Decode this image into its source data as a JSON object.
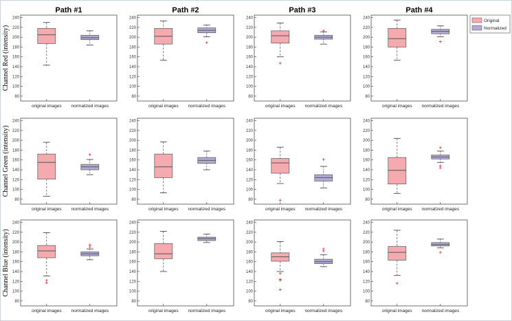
{
  "chart_data": {
    "type": "box",
    "columns": [
      "Path #1",
      "Path #2",
      "Path #3",
      "Path #4"
    ],
    "rows": [
      "Channel Red (intensity)",
      "Channel Green (intensity)",
      "Channel Blue (intensity)"
    ],
    "categories": [
      "original images",
      "normalized images"
    ],
    "legend": [
      {
        "label": "Original",
        "color": "#f5aab0"
      },
      {
        "label": "Normalized",
        "color": "#b3aad6"
      }
    ],
    "ylim": [
      70,
      245
    ],
    "yticks": [
      80,
      100,
      120,
      140,
      160,
      180,
      200,
      220,
      240
    ],
    "colors": {
      "original": "#f5aab0",
      "normalized": "#b3aad6",
      "median": "#555555",
      "outlier": "#e03030"
    },
    "panels": [
      [
        [
          {
            "lo": 143,
            "q1": 187,
            "median": 205,
            "q3": 218,
            "hi": 230,
            "outliers": []
          },
          {
            "lo": 184,
            "q1": 195,
            "median": 199,
            "q3": 204,
            "hi": 213,
            "outliers": []
          }
        ],
        [
          {
            "lo": 153,
            "q1": 186,
            "median": 202,
            "q3": 218,
            "hi": 233,
            "outliers": []
          },
          {
            "lo": 201,
            "q1": 209,
            "median": 214,
            "q3": 219,
            "hi": 225,
            "outliers": [
              189
            ]
          }
        ],
        [
          {
            "lo": 160,
            "q1": 188,
            "median": 203,
            "q3": 213,
            "hi": 229,
            "outliers": [
              147
            ]
          },
          {
            "lo": 186,
            "q1": 196,
            "median": 200,
            "q3": 204,
            "hi": 211,
            "outliers": [
              213
            ]
          }
        ],
        [
          {
            "lo": 153,
            "q1": 180,
            "median": 197,
            "q3": 218,
            "hi": 235,
            "outliers": []
          },
          {
            "lo": 201,
            "q1": 207,
            "median": 212,
            "q3": 216,
            "hi": 223,
            "outliers": [
              191
            ]
          }
        ]
      ],
      [
        [
          {
            "lo": 86,
            "q1": 121,
            "median": 155,
            "q3": 172,
            "hi": 196,
            "outliers": []
          },
          {
            "lo": 130,
            "q1": 140,
            "median": 146,
            "q3": 151,
            "hi": 161,
            "outliers": [
              171
            ]
          }
        ],
        [
          {
            "lo": 93,
            "q1": 124,
            "median": 146,
            "q3": 172,
            "hi": 197,
            "outliers": []
          },
          {
            "lo": 140,
            "q1": 153,
            "median": 159,
            "q3": 165,
            "hi": 178,
            "outliers": []
          }
        ],
        [
          {
            "lo": 112,
            "q1": 133,
            "median": 154,
            "q3": 163,
            "hi": 186,
            "outliers": [
              78
            ]
          },
          {
            "lo": 103,
            "q1": 117,
            "median": 124,
            "q3": 130,
            "hi": 147,
            "outliers": [
              161
            ]
          }
        ],
        [
          {
            "lo": 92,
            "q1": 111,
            "median": 139,
            "q3": 165,
            "hi": 204,
            "outliers": []
          },
          {
            "lo": 155,
            "q1": 162,
            "median": 166,
            "q3": 170,
            "hi": 178,
            "outliers": [
              185,
              148,
              144
            ]
          }
        ]
      ],
      [
        [
          {
            "lo": 131,
            "q1": 168,
            "median": 182,
            "q3": 193,
            "hi": 219,
            "outliers": [
              122,
              117
            ]
          },
          {
            "lo": 164,
            "q1": 172,
            "median": 176,
            "q3": 180,
            "hi": 186,
            "outliers": [
              194,
              190
            ]
          }
        ],
        [
          {
            "lo": 140,
            "q1": 166,
            "median": 176,
            "q3": 197,
            "hi": 222,
            "outliers": []
          },
          {
            "lo": 199,
            "q1": 203,
            "median": 207,
            "q3": 210,
            "hi": 216,
            "outliers": []
          }
        ],
        [
          {
            "lo": 140,
            "q1": 161,
            "median": 170,
            "q3": 178,
            "hi": 201,
            "outliers": [
              136,
              124,
              122,
              103
            ]
          },
          {
            "lo": 150,
            "q1": 156,
            "median": 160,
            "q3": 165,
            "hi": 174,
            "outliers": [
              186,
              182
            ]
          }
        ],
        [
          {
            "lo": 132,
            "q1": 163,
            "median": 179,
            "q3": 191,
            "hi": 224,
            "outliers": [
              116
            ]
          },
          {
            "lo": 188,
            "q1": 192,
            "median": 195,
            "q3": 199,
            "hi": 206,
            "outliers": [
              179
            ]
          }
        ]
      ]
    ]
  }
}
